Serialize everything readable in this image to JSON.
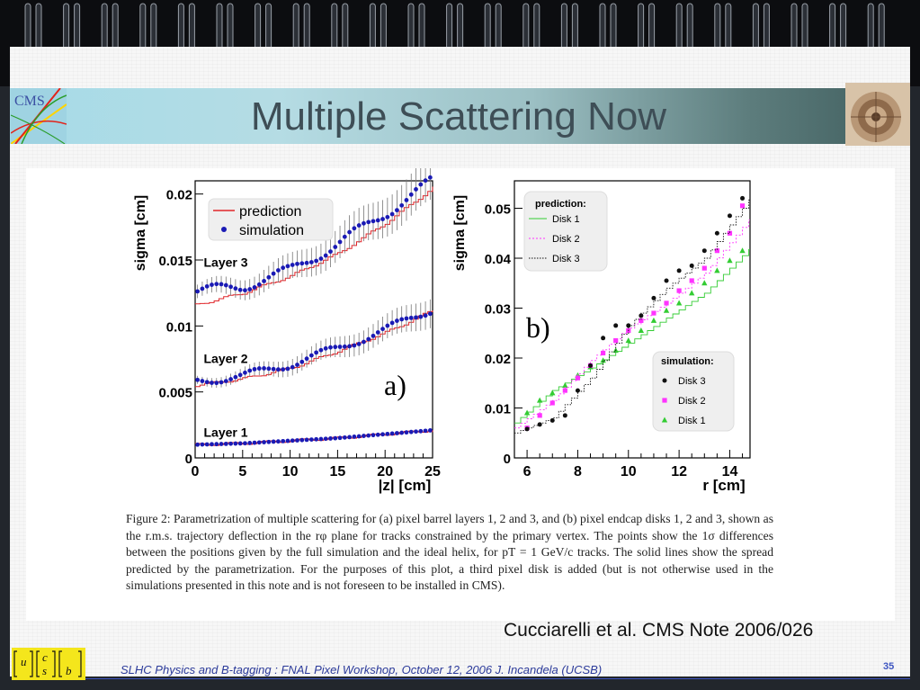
{
  "slide": {
    "title": "Multiple Scattering Now",
    "cms_logo_text": "CMS",
    "credit": "Cucciarelli et al. CMS Note 2006/026",
    "footer": "SLHC Physics and B-tagging : FNAL Pixel Workshop, October 12, 2006   J. Incandela (UCSB)",
    "page_number": "35",
    "ucsb_letters": [
      "u",
      "c",
      "s",
      "b"
    ]
  },
  "colors": {
    "prediction_line": "#e0262a",
    "simulation_marker": "#1a1ab5",
    "disk1": "#33cc33",
    "disk2": "#ff33ff",
    "disk3": "#111111",
    "error_bar": "#777777"
  },
  "caption": "Figure 2: Parametrization of multiple scattering for (a) pixel barrel layers 1, 2 and 3, and (b) pixel endcap disks 1, 2 and 3, shown as the r.m.s. trajectory deflection in the rφ plane for tracks constrained by the primary vertex. The points show the 1σ differences between the positions given by the full simulation and the ideal helix, for pT = 1 GeV/c tracks. The solid lines show the spread predicted by the parametrization. For the purposes of this plot, a third pixel disk is added (but is not otherwise used in the simulations presented in this note and is not foreseen to be installed in CMS).",
  "chart_data": [
    {
      "type": "scatter",
      "panel_label": "a)",
      "xlabel": "|z|  [cm]",
      "ylabel": "sigma  [cm]",
      "xlim": [
        0,
        25
      ],
      "ylim": [
        0,
        0.021
      ],
      "x_ticks": [
        "0",
        "5",
        "10",
        "15",
        "20",
        "25"
      ],
      "x_tick_values": [
        0,
        5,
        10,
        15,
        20,
        25
      ],
      "y_ticks": [
        "0",
        "0.005",
        "0.01",
        "0.015",
        "0.02"
      ],
      "y_tick_values": [
        0,
        0.005,
        0.01,
        0.015,
        0.02
      ],
      "legend": [
        "prediction",
        "simulation"
      ],
      "legend_position": "top-left",
      "series": [
        {
          "name": "Layer 3",
          "prediction": {
            "x": [
              0,
              5,
              10,
              15,
              20,
              25
            ],
            "y": [
              0.0116,
              0.0125,
              0.0138,
              0.0155,
              0.0178,
              0.0205
            ]
          },
          "simulation": {
            "x": [
              0,
              5,
              10,
              15,
              20,
              25
            ],
            "y": [
              0.0126,
              0.013,
              0.0142,
              0.0162,
              0.0185,
              0.021
            ]
          }
        },
        {
          "name": "Layer 2",
          "prediction": {
            "x": [
              0,
              5,
              10,
              15,
              20,
              25
            ],
            "y": [
              0.0055,
              0.006,
              0.0068,
              0.0081,
              0.0095,
              0.0112
            ]
          },
          "simulation": {
            "x": [
              0,
              5,
              10,
              15,
              20,
              25
            ],
            "y": [
              0.0058,
              0.0062,
              0.0071,
              0.0083,
              0.0097,
              0.0113
            ]
          }
        },
        {
          "name": "Layer 1",
          "prediction": {
            "x": [
              0,
              5,
              10,
              15,
              20,
              25
            ],
            "y": [
              0.001,
              0.0011,
              0.0013,
              0.0015,
              0.0018,
              0.0021
            ]
          },
          "simulation": {
            "x": [
              0,
              5,
              10,
              15,
              20,
              25
            ],
            "y": [
              0.001,
              0.0011,
              0.0013,
              0.0015,
              0.0018,
              0.0021
            ]
          }
        }
      ]
    },
    {
      "type": "scatter",
      "panel_label": "b)",
      "xlabel": "r  [cm]",
      "ylabel": "sigma  [cm]",
      "xlim": [
        5.5,
        14.8
      ],
      "ylim": [
        0,
        0.0555
      ],
      "x_ticks": [
        "6",
        "8",
        "10",
        "12",
        "14"
      ],
      "x_tick_values": [
        6,
        8,
        10,
        12,
        14
      ],
      "y_ticks": [
        "0",
        "0.01",
        "0.02",
        "0.03",
        "0.04",
        "0.05"
      ],
      "y_tick_values": [
        0,
        0.01,
        0.02,
        0.03,
        0.04,
        0.05
      ],
      "legend_prediction": {
        "title": "prediction:",
        "entries": [
          "Disk 1",
          "Disk 2",
          "Disk 3"
        ],
        "position": "top-left"
      },
      "legend_simulation": {
        "title": "simulation:",
        "entries": [
          "Disk 3",
          "Disk 2",
          "Disk 1"
        ],
        "position": "bottom-right"
      },
      "series": [
        {
          "name": "Disk 1",
          "prediction": {
            "x": [
              5.5,
              7,
              8.5,
              10,
              11.5,
              13,
              14.8
            ],
            "y": [
              0.007,
              0.0135,
              0.018,
              0.023,
              0.028,
              0.033,
              0.042
            ]
          },
          "simulation": {
            "x": [
              6,
              6.5,
              7,
              7.5,
              8,
              8.5,
              9,
              9.5,
              10,
              10.5,
              11,
              11.5,
              12,
              12.5,
              13,
              13.5,
              14,
              14.5
            ],
            "y": [
              0.009,
              0.0115,
              0.013,
              0.0145,
              0.0165,
              0.0182,
              0.0195,
              0.0215,
              0.0235,
              0.0255,
              0.0275,
              0.0295,
              0.031,
              0.033,
              0.035,
              0.0375,
              0.0395,
              0.0415
            ]
          }
        },
        {
          "name": "Disk 2",
          "prediction": {
            "x": [
              5.5,
              7,
              8.5,
              10,
              11.5,
              13,
              14.8
            ],
            "y": [
              0.006,
              0.0115,
              0.0195,
              0.026,
              0.031,
              0.037,
              0.048
            ]
          },
          "simulation": {
            "x": [
              6,
              6.5,
              7,
              7.5,
              8,
              8.5,
              9,
              9.5,
              10,
              10.5,
              11,
              11.5,
              12,
              12.5,
              13,
              13.5,
              14,
              14.5
            ],
            "y": [
              0.006,
              0.0085,
              0.011,
              0.0135,
              0.016,
              0.0185,
              0.021,
              0.0235,
              0.0255,
              0.0275,
              0.029,
              0.031,
              0.0335,
              0.0355,
              0.038,
              0.0415,
              0.045,
              0.0505
            ]
          }
        },
        {
          "name": "Disk 3",
          "prediction": {
            "x": [
              5.5,
              7,
              8.5,
              10,
              11.5,
              13,
              14.8
            ],
            "y": [
              0.005,
              0.008,
              0.016,
              0.0265,
              0.034,
              0.04,
              0.052
            ]
          },
          "simulation": {
            "x": [
              6,
              6.5,
              7,
              7.5,
              8,
              8.5,
              9,
              9.5,
              10,
              10.5,
              11,
              11.5,
              12,
              12.5,
              13,
              13.5,
              14,
              14.5
            ],
            "y": [
              0.0058,
              0.0067,
              0.0075,
              0.0085,
              0.0135,
              0.0185,
              0.024,
              0.0265,
              0.0265,
              0.0285,
              0.032,
              0.0355,
              0.0375,
              0.0385,
              0.0415,
              0.045,
              0.0485,
              0.052
            ]
          }
        }
      ]
    }
  ]
}
